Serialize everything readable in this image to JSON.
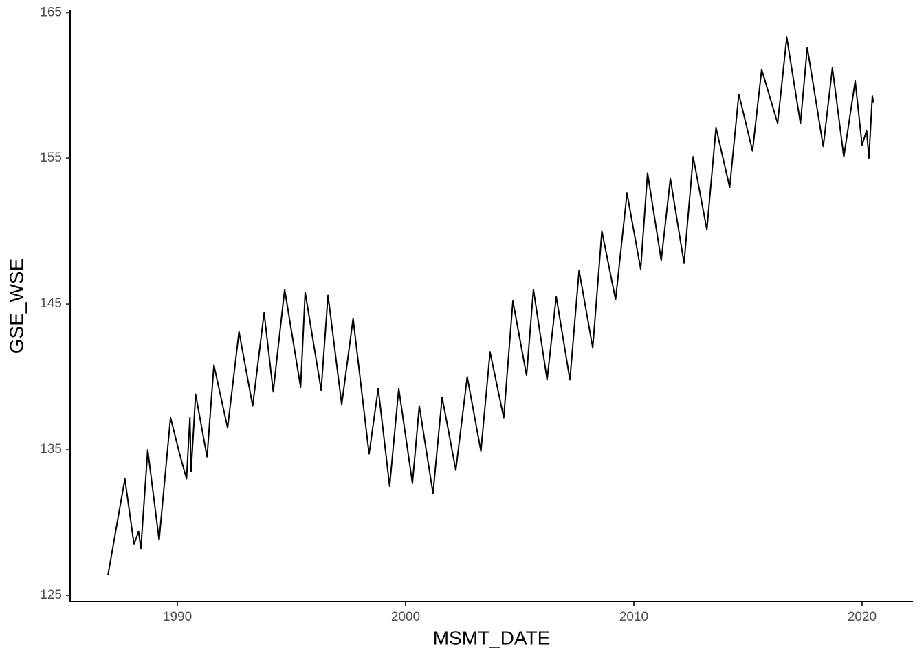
{
  "chart_data": {
    "type": "line",
    "x_label": "MSMT_DATE",
    "y_label": "GSE_WSE",
    "xlim": [
      1985.3,
      2022.23
    ],
    "ylim": [
      124.58,
      165.2
    ],
    "xticks": [
      1990,
      2000,
      2010,
      2020
    ],
    "yticks": [
      125,
      135,
      145,
      155,
      165
    ],
    "grid": false,
    "series": [
      {
        "color": "#000000",
        "x": [
          1986.96,
          1987.7,
          1988.1,
          1988.3,
          1988.4,
          1988.7,
          1989.2,
          1989.7,
          1990.1,
          1990.4,
          1990.55,
          1990.6,
          1990.8,
          1991.3,
          1991.6,
          1992.2,
          1992.7,
          1993.3,
          1993.8,
          1994.2,
          1994.7,
          1995.4,
          1995.6,
          1996.3,
          1996.6,
          1997.2,
          1997.7,
          1998.4,
          1998.8,
          1999.3,
          1999.7,
          2000.3,
          2000.6,
          2001.2,
          2001.6,
          2002.2,
          2002.7,
          2003.3,
          2003.7,
          2004.3,
          2004.7,
          2005.3,
          2005.6,
          2006.2,
          2006.6,
          2007.2,
          2007.6,
          2008.2,
          2008.6,
          2009.2,
          2009.7,
          2010.3,
          2010.6,
          2011.2,
          2011.6,
          2012.2,
          2012.6,
          2013.2,
          2013.6,
          2014.2,
          2014.6,
          2015.2,
          2015.6,
          2016.3,
          2016.7,
          2017.3,
          2017.6,
          2018.3,
          2018.7,
          2019.2,
          2019.7,
          2020.0,
          2020.2,
          2020.3,
          2020.45,
          2020.5
        ],
        "values": [
          126.4,
          133.0,
          128.5,
          129.4,
          128.2,
          135.0,
          128.8,
          137.2,
          134.7,
          133.0,
          137.2,
          133.5,
          138.8,
          134.5,
          140.8,
          136.5,
          143.1,
          138.0,
          144.4,
          139.0,
          146.0,
          139.3,
          145.8,
          139.1,
          145.6,
          138.1,
          144.0,
          134.7,
          139.2,
          132.5,
          139.2,
          132.7,
          138.0,
          132.0,
          138.6,
          133.6,
          140.0,
          134.9,
          141.7,
          137.2,
          145.2,
          140.1,
          146.0,
          139.8,
          145.5,
          139.8,
          147.3,
          142.0,
          150.0,
          145.3,
          152.6,
          147.4,
          154.0,
          148.0,
          153.6,
          147.8,
          155.1,
          150.1,
          157.1,
          153.0,
          159.4,
          155.5,
          161.1,
          157.4,
          163.3,
          157.4,
          162.6,
          155.8,
          161.2,
          155.1,
          160.3,
          155.9,
          156.9,
          155.0,
          159.3,
          158.8
        ]
      }
    ]
  }
}
